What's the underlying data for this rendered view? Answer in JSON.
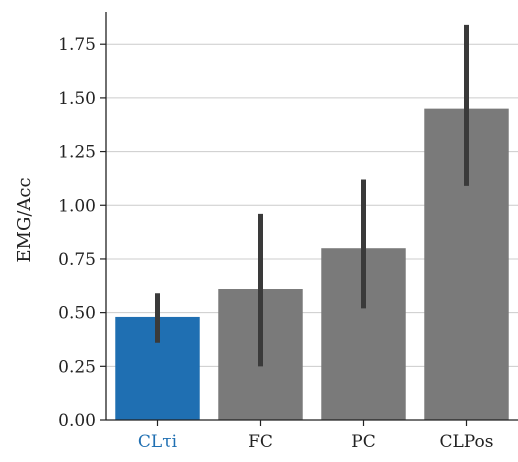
{
  "chart_data": {
    "type": "bar",
    "title": "",
    "xlabel": "",
    "ylabel": "EMG/Acc",
    "categories": [
      "CLτi",
      "FC",
      "PC",
      "CLPos"
    ],
    "values": [
      0.48,
      0.61,
      0.8,
      1.45
    ],
    "error_bars": [
      [
        0.36,
        0.59
      ],
      [
        0.25,
        0.96
      ],
      [
        0.52,
        1.12
      ],
      [
        1.09,
        1.84
      ]
    ],
    "bar_colors": [
      "#1f6fb2",
      "#7a7a7a",
      "#7a7a7a",
      "#7a7a7a"
    ],
    "error_bar_color": "#3a3a3a",
    "highlight_label_color": "#1f6fb2",
    "ylim": [
      0,
      1.9
    ],
    "yticks": [
      0.0,
      0.25,
      0.5,
      0.75,
      1.0,
      1.25,
      1.5,
      1.75
    ],
    "ytick_labels": [
      "0.00",
      "0.25",
      "0.50",
      "0.75",
      "1.00",
      "1.25",
      "1.50",
      "1.75"
    ],
    "grid": "horizontal"
  }
}
